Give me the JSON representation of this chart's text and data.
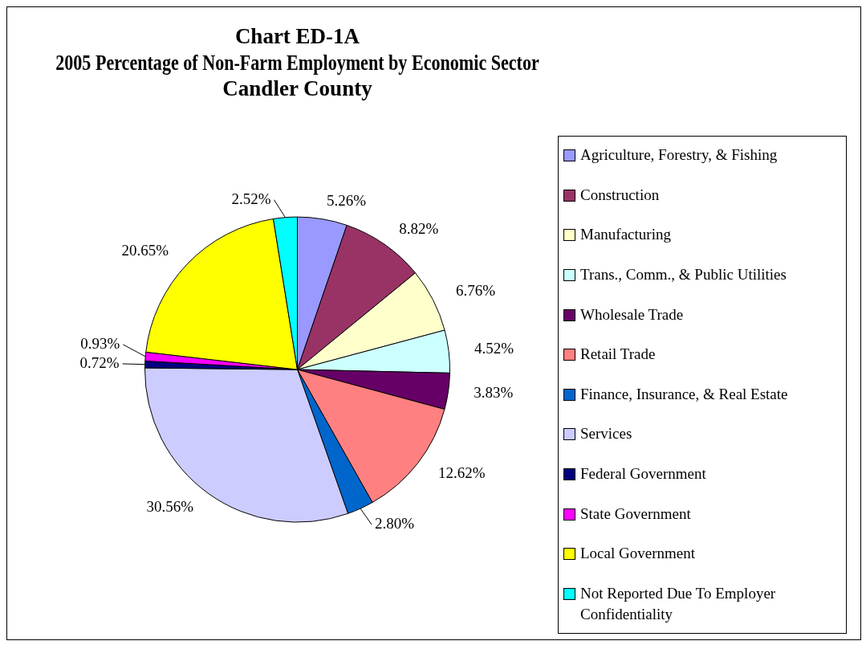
{
  "chart_data": {
    "type": "pie",
    "title": "Chart ED-1A\n2005 Percentage of Non-Farm Employment by Economic Sector\nCandler County",
    "categories": [
      "Agriculture, Forestry, & Fishing",
      "Construction",
      "Manufacturing",
      "Trans., Comm., & Public Utilities",
      "Wholesale Trade",
      "Retail Trade",
      "Finance, Insurance, & Real Estate",
      "Services",
      "Federal Government",
      "State Government",
      "Local Government",
      "Not Reported Due To Employer Confidentiality"
    ],
    "values": [
      5.26,
      8.82,
      6.76,
      4.52,
      3.83,
      12.62,
      2.8,
      30.56,
      0.72,
      0.93,
      20.65,
      2.52
    ],
    "value_labels": [
      "5.26%",
      "8.82%",
      "6.76%",
      "4.52%",
      "3.83%",
      "12.62%",
      "2.80%",
      "30.56%",
      "0.72%",
      "0.93%",
      "20.65%",
      "2.52%"
    ],
    "colors": [
      "#9999ff",
      "#993366",
      "#ffffcc",
      "#ccffff",
      "#660066",
      "#ff8080",
      "#0066cc",
      "#ccccff",
      "#000080",
      "#ff00ff",
      "#ffff00",
      "#00ffff"
    ],
    "legend": "right"
  }
}
